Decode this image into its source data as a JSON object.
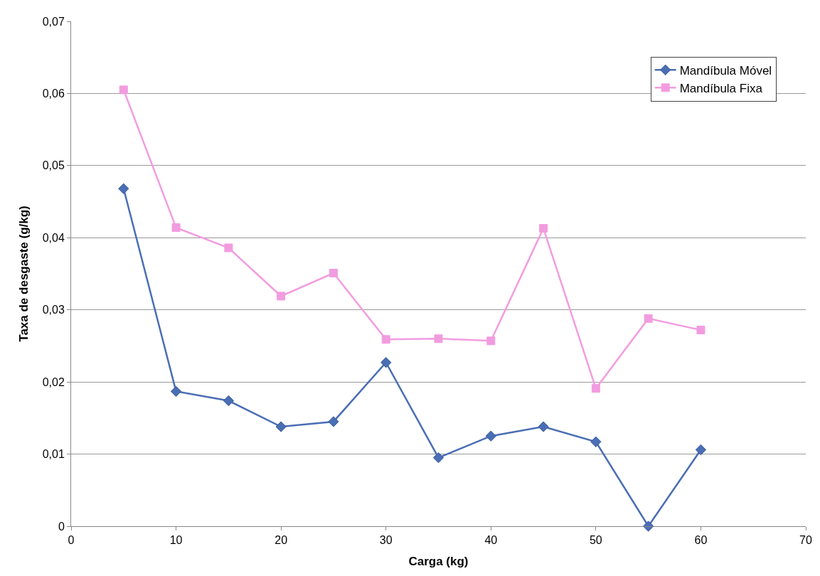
{
  "chart_data": {
    "type": "line",
    "xlabel": "Carga (kg)",
    "ylabel": "Taxa de desgaste (g/kg)",
    "x": [
      5,
      10,
      15,
      20,
      25,
      30,
      35,
      40,
      45,
      50,
      55,
      60
    ],
    "series": [
      {
        "name": "Mandíbula Móvel",
        "color": "#4a6eb5",
        "marker": "diamond",
        "values": [
          0.0468,
          0.0187,
          0.0174,
          0.0138,
          0.0145,
          0.0227,
          0.0095,
          0.0125,
          0.0138,
          0.0117,
          0.0,
          0.0106
        ]
      },
      {
        "name": "Mandíbula Fixa",
        "color": "#f29ce0",
        "marker": "square",
        "values": [
          0.0605,
          0.0414,
          0.0386,
          0.0319,
          0.0351,
          0.0259,
          0.026,
          0.0257,
          0.0413,
          0.0191,
          0.0288,
          0.0272
        ]
      }
    ],
    "xlim": [
      0,
      70
    ],
    "xticks": [
      0,
      10,
      20,
      30,
      40,
      50,
      60,
      70
    ],
    "ylim": [
      0,
      0.07
    ],
    "yticks": [
      0,
      {
        "value": 0.01,
        "label": "0,01"
      },
      {
        "value": 0.02,
        "label": "0,02"
      },
      {
        "value": 0.03,
        "label": "0,03"
      },
      {
        "value": 0.04,
        "label": "0,04"
      },
      {
        "value": 0.05,
        "label": "0,05"
      },
      {
        "value": 0.06,
        "label": "0,06"
      },
      {
        "value": 0.07,
        "label": "0,07"
      }
    ],
    "grid": "y",
    "legend": "top right",
    "line_style": "solid"
  }
}
